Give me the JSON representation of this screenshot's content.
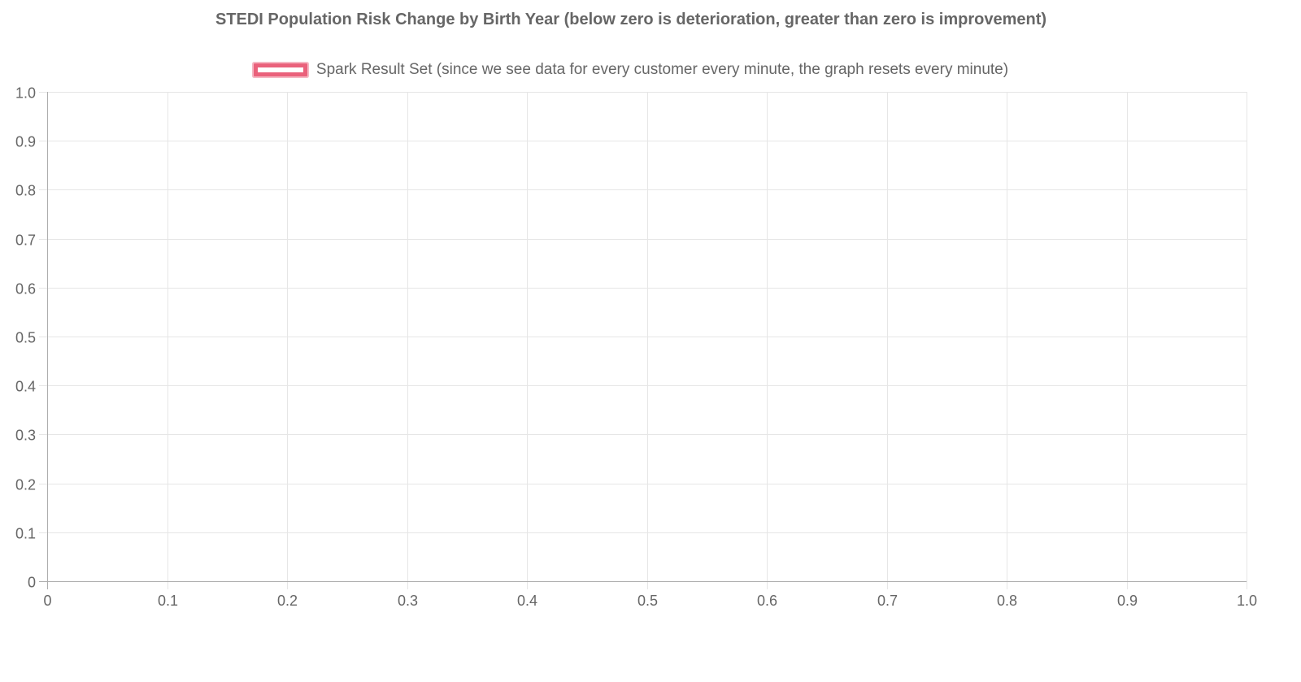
{
  "colors": {
    "background": "#ffffff",
    "grid": "#e6e6e6",
    "axis": "#aeaeae",
    "tick_label": "#666666",
    "title": "#666666",
    "legend_text": "#666666",
    "legend_swatch_border": "#ea617b",
    "legend_swatch_halo": "#f5b7c3",
    "legend_swatch_fill": "#ffffff"
  },
  "chart_data": {
    "type": "line",
    "title": "STEDI Population Risk Change by Birth Year (below zero is deterioration, greater than zero is improvement)",
    "legend_position": "top",
    "grid": true,
    "series": [
      {
        "name": "Spark Result Set (since we see data for every customer every minute, the graph resets every minute)",
        "color": "#ea617b",
        "points": []
      }
    ],
    "x_axis": {
      "label": "",
      "min": 0,
      "max": 1,
      "tick_labels": [
        "0",
        "0.1",
        "0.2",
        "0.3",
        "0.4",
        "0.5",
        "0.6",
        "0.7",
        "0.8",
        "0.9",
        "1.0"
      ]
    },
    "y_axis": {
      "label": "",
      "min": 0,
      "max": 1,
      "tick_labels": [
        "1.0",
        "0.9",
        "0.8",
        "0.7",
        "0.6",
        "0.5",
        "0.4",
        "0.3",
        "0.2",
        "0.1",
        "0"
      ]
    }
  }
}
